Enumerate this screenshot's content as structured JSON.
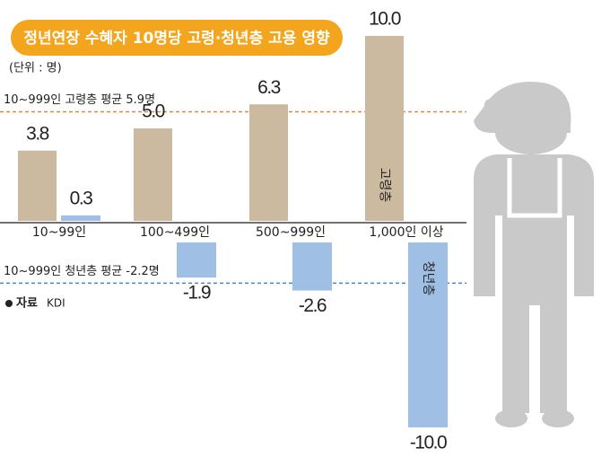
{
  "chart_data": {
    "type": "bar",
    "title": "정년연장 수혜자 10명당 고령·청년층 고용 영향",
    "unit": "(단위 : 명)",
    "categories": [
      "10~99인",
      "100~499인",
      "500~999인",
      "1,000인 이상"
    ],
    "series": [
      {
        "name": "고령층",
        "color": "#cbb9a0",
        "values": [
          3.8,
          5.0,
          6.3,
          10.0
        ],
        "value_labels": [
          "3.8",
          "5.0",
          "6.3",
          "10.0"
        ]
      },
      {
        "name": "청년층",
        "color": "#9fbfe5",
        "values": [
          0.3,
          -1.9,
          -2.6,
          -10.0
        ],
        "value_labels": [
          "0.3",
          "-1.9",
          "-2.6",
          "-10.0"
        ]
      }
    ],
    "reference_lines": [
      {
        "label": "10~999인 고령층 평균 5.9명",
        "value": 5.9,
        "color": "#d9893a"
      },
      {
        "label": "10~999인 청년층 평균 -2.2명",
        "value": -2.2,
        "color": "#4a86c5"
      }
    ],
    "source_label": "자료",
    "source": "KDI"
  }
}
